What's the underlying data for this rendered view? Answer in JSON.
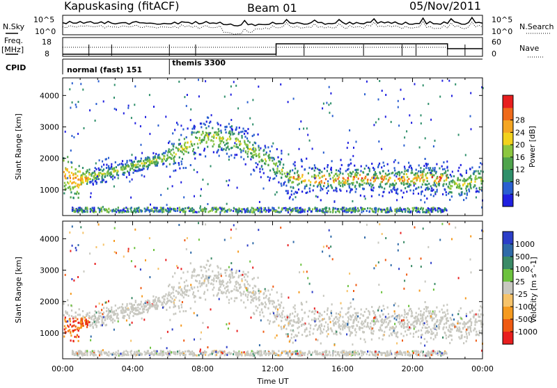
{
  "header": {
    "station": "Kapuskasing (fitACF)",
    "beam": "Beam 01",
    "date": "05/Nov/2011"
  },
  "strip": {
    "nsky_label": "N.Sky",
    "nsearch_label": "N.Search",
    "freq_label_1": "Freq.",
    "freq_label_2": "[MHz]",
    "nave_label": "Nave",
    "cpid_label": "CPID",
    "noise_ticks_left": [
      "10^5",
      "10^0"
    ],
    "noise_ticks_right": [
      "10^5",
      "10^0"
    ],
    "freq_ticks": [
      "18",
      "8"
    ],
    "nave_ticks": [
      "60",
      "0"
    ],
    "cpid_modes": [
      {
        "name": "normal (fast) 151",
        "start_hour": 0
      },
      {
        "name": "themis 3300",
        "start_hour": 6.1
      }
    ]
  },
  "chart_data": [
    {
      "type": "heatmap",
      "panel": "power",
      "xlabel": "",
      "ylabel": "Slant Range [km]",
      "xlim": [
        0,
        24
      ],
      "ylim": [
        180,
        4560
      ],
      "yticks": [
        "1000",
        "2000",
        "3000",
        "4000"
      ],
      "colorbar": {
        "label": "Power [dB]",
        "ticks": [
          "4",
          "8",
          "12",
          "16",
          "20",
          "24",
          "28"
        ],
        "colors": [
          "#2020e0",
          "#2a5fd0",
          "#2f8f6a",
          "#4fa44c",
          "#8cc63f",
          "#f2d21c",
          "#f5a623",
          "#ef6a1a",
          "#e81e1e"
        ]
      }
    },
    {
      "type": "heatmap",
      "panel": "velocity",
      "xlabel": "Time UT",
      "ylabel": "Slant Range [km]",
      "xlim": [
        0,
        24
      ],
      "ylim": [
        180,
        4560
      ],
      "xticks": [
        "00:00",
        "04:00",
        "08:00",
        "12:00",
        "16:00",
        "20:00",
        "00:00"
      ],
      "yticks": [
        "1000",
        "2000",
        "3000",
        "4000"
      ],
      "colorbar": {
        "label": "Velocity [m s^-1]",
        "ticks": [
          "1000",
          "500",
          "100",
          "25",
          "-25",
          "-100",
          "-500",
          "-1000"
        ],
        "colors": [
          "#2c3ec8",
          "#2f6aa8",
          "#3a8a66",
          "#6cc23e",
          "#c8c8c0",
          "#f6c36a",
          "#f59a1f",
          "#ef5a12",
          "#e81e1e"
        ]
      }
    }
  ]
}
